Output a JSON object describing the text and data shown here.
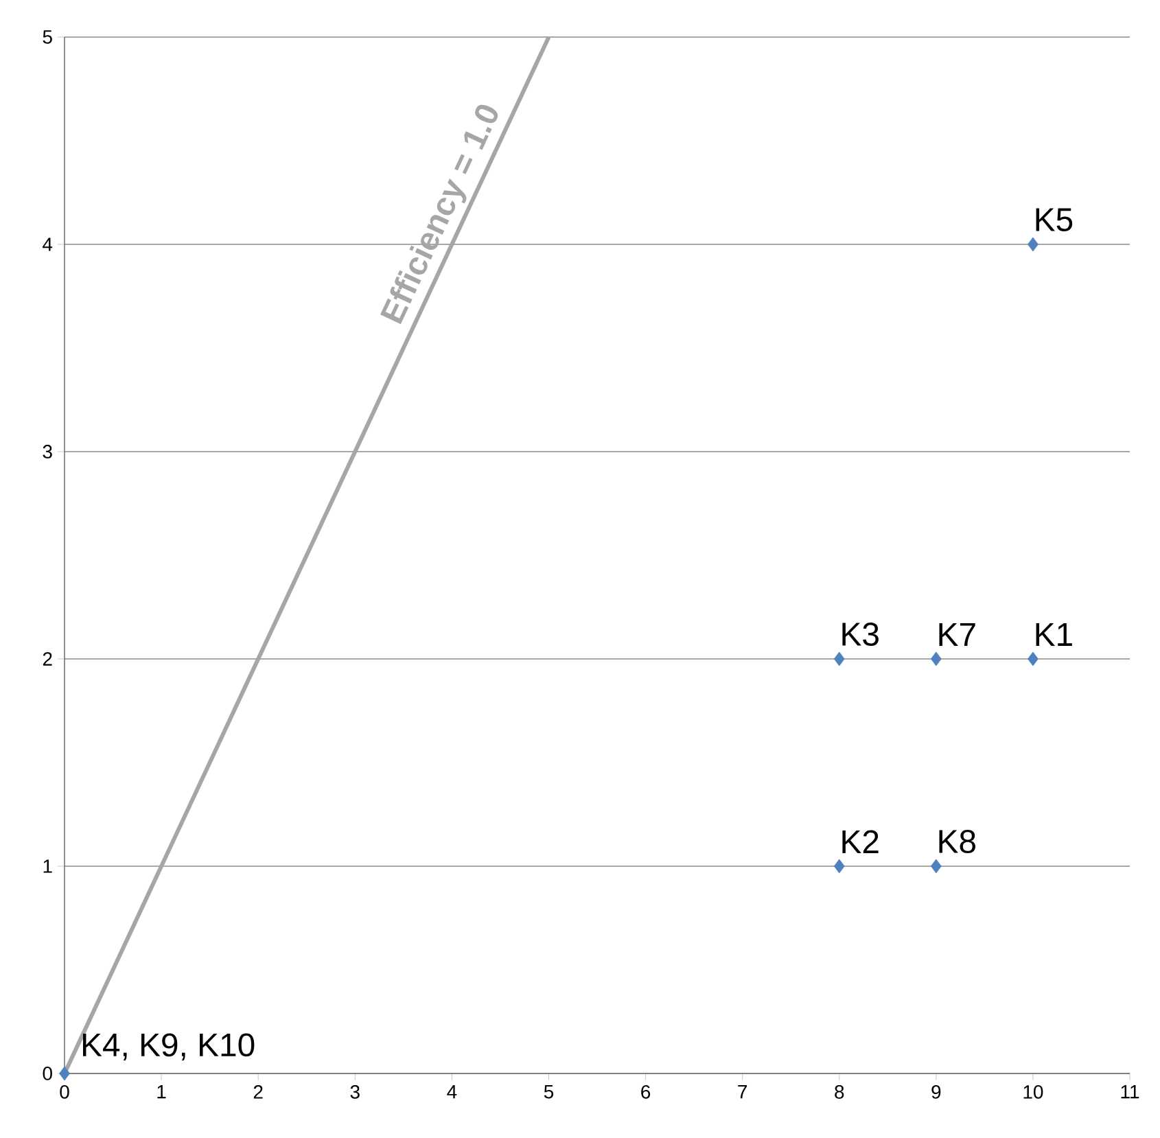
{
  "chart_data": {
    "type": "scatter",
    "xlim": [
      0,
      11
    ],
    "ylim": [
      0,
      5
    ],
    "xticks": [
      0,
      1,
      2,
      3,
      4,
      5,
      6,
      7,
      8,
      9,
      10,
      11
    ],
    "yticks": [
      0,
      1,
      2,
      3,
      4,
      5
    ],
    "grid": "y",
    "series": [
      {
        "name": "Efficiency = 1.0",
        "type": "line",
        "color": "#a6a6a6",
        "x": [
          0,
          5
        ],
        "values": [
          0,
          5
        ]
      },
      {
        "marker": "diamond",
        "color": "#4f81bd",
        "x": [
          10,
          8,
          9,
          10,
          8,
          9,
          0
        ],
        "values": [
          4,
          2,
          2,
          2,
          1,
          1,
          0
        ]
      }
    ],
    "annotations": [
      {
        "text": "K5",
        "x": 10,
        "y": 4
      },
      {
        "text": "K3",
        "x": 8,
        "y": 2
      },
      {
        "text": "K7",
        "x": 9,
        "y": 2
      },
      {
        "text": "K1",
        "x": 10,
        "y": 2
      },
      {
        "text": "K2",
        "x": 8,
        "y": 1
      },
      {
        "text": "K8",
        "x": 9,
        "y": 1
      },
      {
        "text": "K4, K9, K10",
        "x": 0,
        "y": 0
      }
    ]
  }
}
